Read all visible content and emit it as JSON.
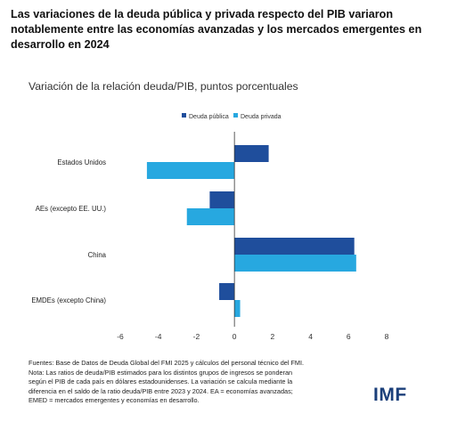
{
  "title": "Las variaciones de la deuda pública y privada respecto del PIB variaron notablemente entre las economías avanzadas y los mercados emergentes en desarrollo en 2024",
  "subtitle": "Variación de la relación deuda/PIB, puntos porcentuales",
  "colors": {
    "deuda_publica": "#1f4e9c",
    "deuda_privada": "#27a8e0"
  },
  "chart_data": {
    "type": "bar",
    "orientation": "horizontal",
    "categories": [
      "Estados Unidos",
      "AEs (excepto EE. UU.)",
      "China",
      "EMDEs (excepto China)"
    ],
    "series": [
      {
        "name": "Deuda pública",
        "values": [
          1.8,
          -1.3,
          6.3,
          -0.8
        ]
      },
      {
        "name": "Deuda privada",
        "values": [
          -4.6,
          -2.5,
          6.4,
          0.3
        ]
      }
    ],
    "xlim": [
      -6,
      8
    ],
    "xticks": [
      -6,
      -4,
      -2,
      0,
      2,
      4,
      6,
      8
    ],
    "legend_position": "top",
    "grid": false
  },
  "footer": {
    "line1": "Fuentes: Base de Datos de Deuda Global del FMI 2025 y cálculos del personal técnico del FMI.",
    "line2": "Nota: Las ratios de deuda/PIB estimados para los distintos grupos de ingresos se ponderan",
    "line3": "según el PIB de cada país en dólares estadounidenses. La variación se calcula mediante la",
    "line4": "diferencia en el saldo de la ratio deuda/PIB entre 2023 y 2024. EA = economías avanzadas;",
    "line5": "EMED = mercados emergentes y economías en desarrollo."
  },
  "logo_text": "IMF"
}
